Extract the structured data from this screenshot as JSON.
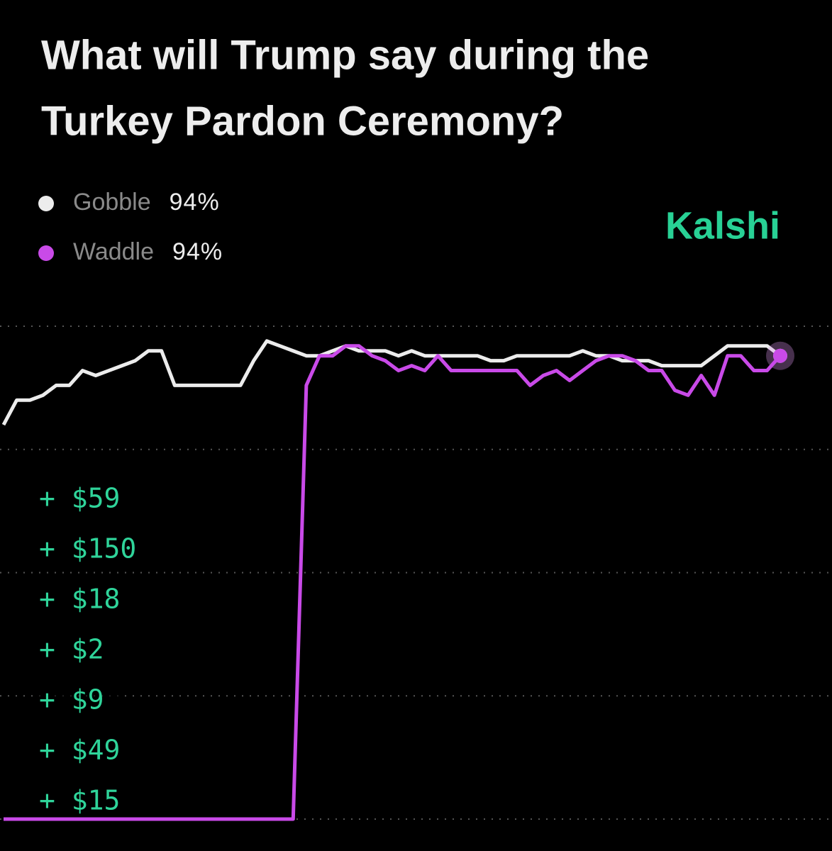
{
  "chart_data": {
    "type": "line",
    "title_lines": [
      "What will Trump say during the",
      "Turkey Pardon Ceremony?"
    ],
    "brand": "Kalshi",
    "categories": [
      null,
      null,
      null,
      null,
      null,
      null,
      null,
      null,
      null,
      null,
      null,
      null,
      null,
      null,
      null,
      null,
      null,
      null,
      null,
      null,
      null,
      null,
      null,
      null,
      null,
      null,
      null,
      null,
      null,
      null,
      null,
      null,
      null,
      null,
      null,
      null,
      null,
      null,
      null,
      null,
      null,
      null,
      null,
      null,
      null,
      null,
      null,
      null,
      null,
      null,
      null,
      null,
      null,
      null,
      null,
      null,
      null,
      null,
      null,
      null
    ],
    "series": [
      {
        "name": "Gobble",
        "color": "#ececec",
        "latest": {
          "value": 94,
          "label": "94%"
        },
        "values": [
          80,
          85,
          85,
          86,
          88,
          88,
          91,
          90,
          91,
          92,
          93,
          95,
          95,
          88,
          88,
          88,
          88,
          88,
          88,
          93,
          97,
          96,
          95,
          94,
          94,
          95,
          96,
          95,
          95,
          95,
          94,
          95,
          94,
          94,
          94,
          94,
          94,
          93,
          93,
          94,
          94,
          94,
          94,
          94,
          95,
          94,
          94,
          93,
          93,
          93,
          92,
          92,
          92,
          92,
          94,
          96,
          96,
          96,
          96,
          94
        ]
      },
      {
        "name": "Waddle",
        "color": "#c94ae8",
        "latest": {
          "value": 94,
          "label": "94%"
        },
        "values": [
          0,
          0,
          0,
          0,
          0,
          0,
          0,
          0,
          0,
          0,
          0,
          0,
          0,
          0,
          0,
          0,
          0,
          0,
          0,
          0,
          0,
          0,
          0,
          88,
          94,
          94,
          96,
          96,
          94,
          93,
          91,
          92,
          91,
          94,
          91,
          91,
          91,
          91,
          91,
          91,
          88,
          90,
          91,
          89,
          91,
          93,
          94,
          94,
          93,
          91,
          91,
          87,
          86,
          90,
          86,
          94,
          94,
          91,
          91,
          94
        ]
      }
    ],
    "trades": [
      "+ $59",
      "+ $150",
      "+ $18",
      "+ $2",
      "+ $9",
      "+ $49",
      "+ $15"
    ],
    "ylim": [
      0,
      100
    ],
    "yticks": [
      0,
      25,
      50,
      75,
      100
    ],
    "grid": true
  }
}
